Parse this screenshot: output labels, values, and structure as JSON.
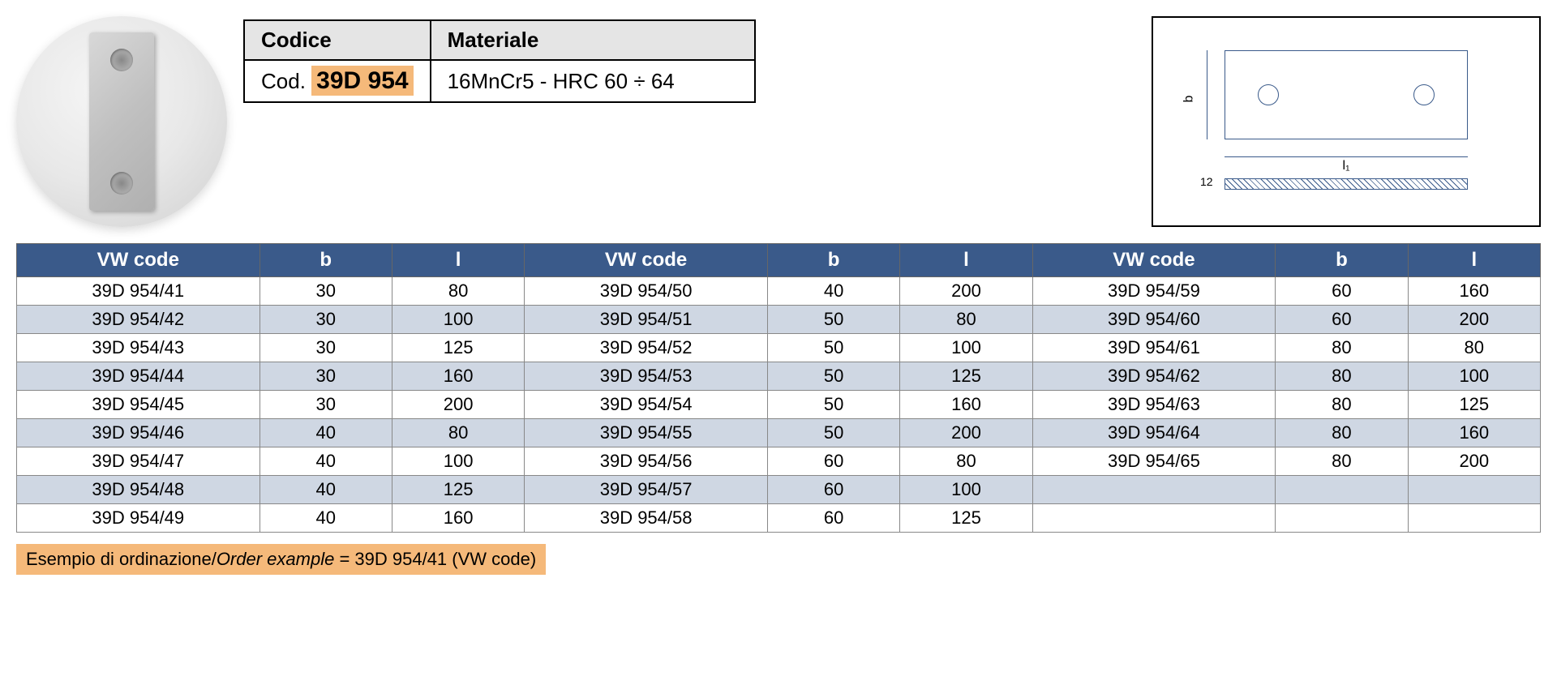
{
  "info": {
    "header_code": "Codice",
    "header_material": "Materiale",
    "code_prefix": "Cod.",
    "code_value": "39D 954",
    "material": "16MnCr5 - HRC 60 ÷ 64"
  },
  "diagram": {
    "dim_b": "b",
    "dim_l": "l₁",
    "dim_thickness": "12"
  },
  "colors": {
    "header_bg": "#3a5a8a",
    "header_fg": "#ffffff",
    "row_alt_bg": "#cfd7e3",
    "highlight_bg": "#f5b97a"
  },
  "table": {
    "headers": [
      "VW code",
      "b",
      "l",
      "VW code",
      "b",
      "l",
      "VW code",
      "b",
      "l"
    ],
    "rows": [
      [
        "39D 954/41",
        "30",
        "80",
        "39D 954/50",
        "40",
        "200",
        "39D 954/59",
        "60",
        "160"
      ],
      [
        "39D 954/42",
        "30",
        "100",
        "39D 954/51",
        "50",
        "80",
        "39D 954/60",
        "60",
        "200"
      ],
      [
        "39D 954/43",
        "30",
        "125",
        "39D 954/52",
        "50",
        "100",
        "39D 954/61",
        "80",
        "80"
      ],
      [
        "39D 954/44",
        "30",
        "160",
        "39D 954/53",
        "50",
        "125",
        "39D 954/62",
        "80",
        "100"
      ],
      [
        "39D 954/45",
        "30",
        "200",
        "39D 954/54",
        "50",
        "160",
        "39D 954/63",
        "80",
        "125"
      ],
      [
        "39D 954/46",
        "40",
        "80",
        "39D 954/55",
        "50",
        "200",
        "39D 954/64",
        "80",
        "160"
      ],
      [
        "39D 954/47",
        "40",
        "100",
        "39D 954/56",
        "60",
        "80",
        "39D 954/65",
        "80",
        "200"
      ],
      [
        "39D 954/48",
        "40",
        "125",
        "39D 954/57",
        "60",
        "100",
        "",
        "",
        ""
      ],
      [
        "39D 954/49",
        "40",
        "160",
        "39D 954/58",
        "60",
        "125",
        "",
        "",
        ""
      ]
    ]
  },
  "footer": {
    "label_it": "Esempio di ordinazione/",
    "label_en": "Order example",
    "value": " = 39D 954/41 (VW code)"
  }
}
